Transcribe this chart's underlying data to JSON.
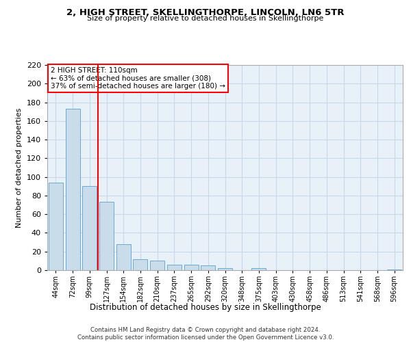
{
  "title1": "2, HIGH STREET, SKELLINGTHORPE, LINCOLN, LN6 5TR",
  "title2": "Size of property relative to detached houses in Skellingthorpe",
  "xlabel": "Distribution of detached houses by size in Skellingthorpe",
  "ylabel": "Number of detached properties",
  "footnote": "Contains HM Land Registry data © Crown copyright and database right 2024.\nContains public sector information licensed under the Open Government Licence v3.0.",
  "categories": [
    "44sqm",
    "72sqm",
    "99sqm",
    "127sqm",
    "154sqm",
    "182sqm",
    "210sqm",
    "237sqm",
    "265sqm",
    "292sqm",
    "320sqm",
    "348sqm",
    "375sqm",
    "403sqm",
    "430sqm",
    "458sqm",
    "486sqm",
    "513sqm",
    "541sqm",
    "568sqm",
    "596sqm"
  ],
  "values": [
    94,
    173,
    90,
    73,
    28,
    12,
    10,
    6,
    6,
    5,
    2,
    0,
    2,
    0,
    0,
    0,
    0,
    0,
    0,
    0,
    1
  ],
  "bar_color": "#c8dcea",
  "bar_edge_color": "#6aaad4",
  "vline_x": 2.5,
  "vline_color": "red",
  "annotation_text": "2 HIGH STREET: 110sqm\n← 63% of detached houses are smaller (308)\n37% of semi-detached houses are larger (180) →",
  "annotation_box_color": "white",
  "annotation_box_edge_color": "red",
  "ylim": [
    0,
    220
  ],
  "yticks": [
    0,
    20,
    40,
    60,
    80,
    100,
    120,
    140,
    160,
    180,
    200,
    220
  ],
  "grid_color": "#c8d8e8",
  "background_color": "#e8f0f8"
}
